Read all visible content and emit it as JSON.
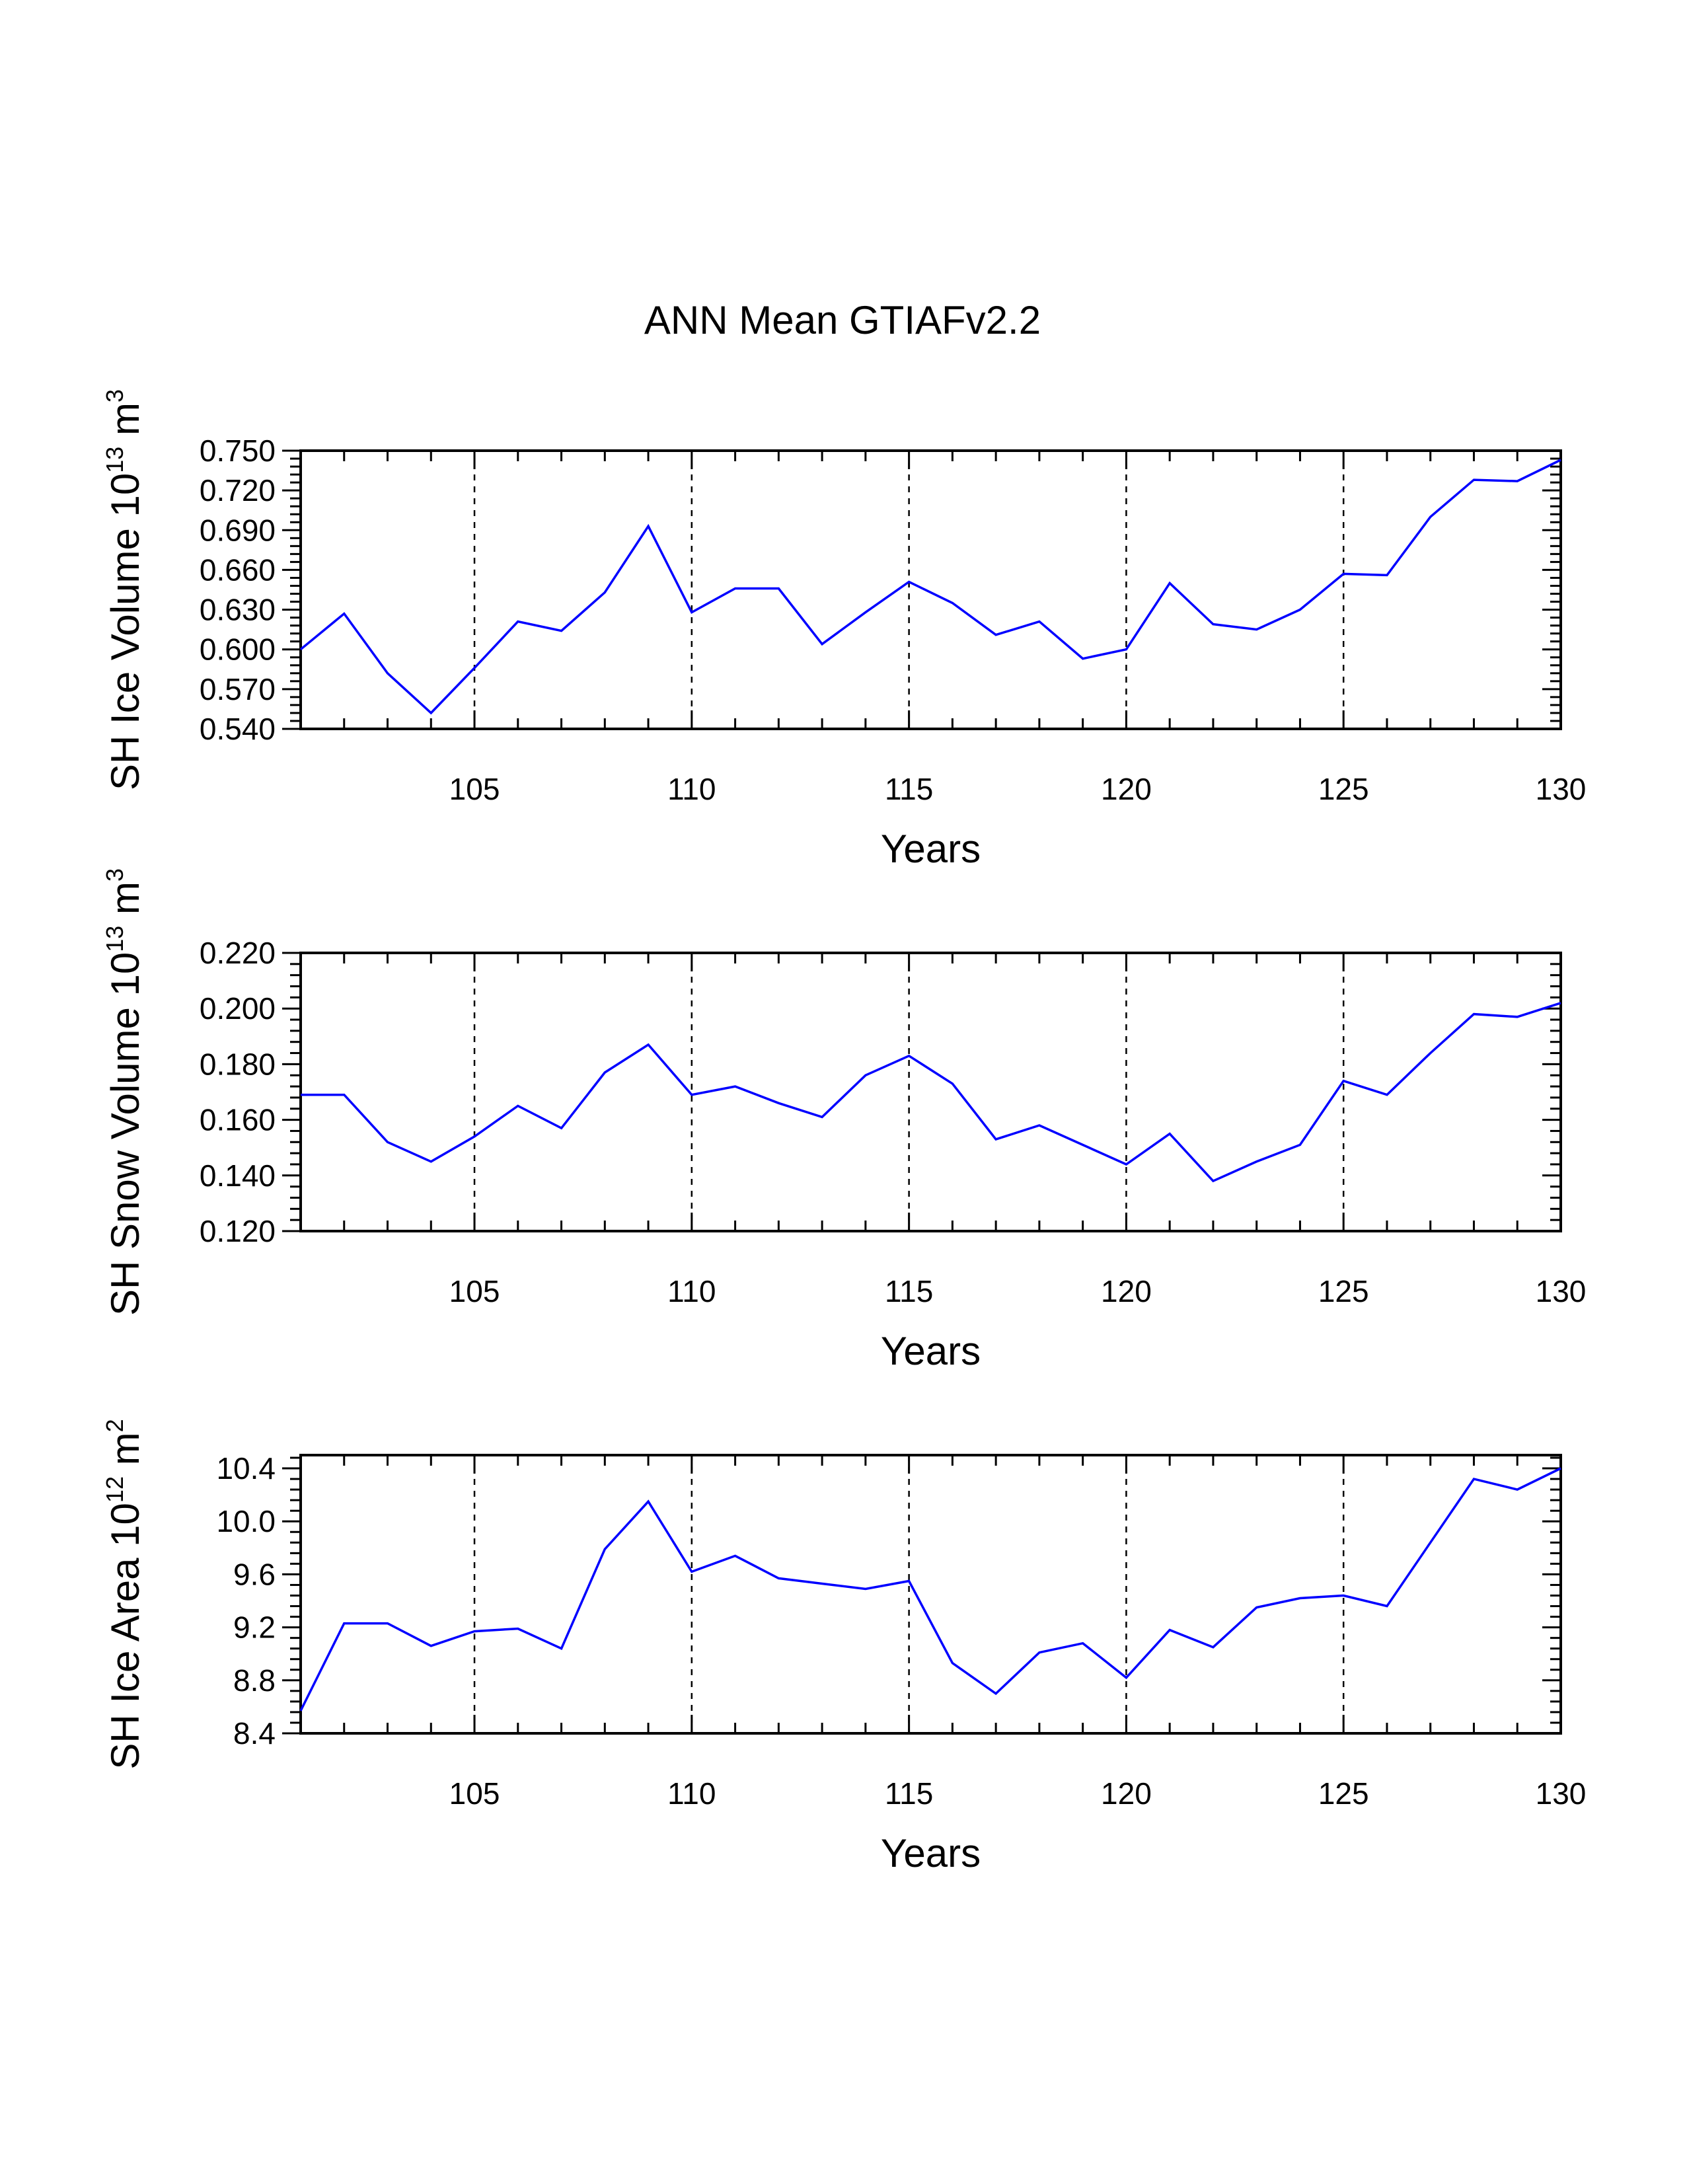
{
  "chart_data": [
    {
      "type": "line",
      "title": "ANN Mean GTIAFv2.2",
      "xlabel": "Years",
      "ylabel": {
        "text": "SH Ice Volume 10",
        "exp": "13",
        "unit": " m",
        "unit_exp": "3"
      },
      "xlim": [
        101,
        130
      ],
      "xticks": [
        "105",
        "110",
        "115",
        "120",
        "125",
        "130"
      ],
      "ylim": [
        0.54,
        0.75
      ],
      "yticks": [
        "0.540",
        "0.570",
        "0.600",
        "0.630",
        "0.660",
        "0.690",
        "0.720",
        "0.750"
      ],
      "grid": "vertical dashed at labeled x ticks",
      "line_color": "#0000ff",
      "x": [
        101,
        102,
        103,
        104,
        105,
        106,
        107,
        108,
        109,
        110,
        111,
        112,
        113,
        114,
        115,
        116,
        117,
        118,
        119,
        120,
        121,
        122,
        123,
        124,
        125,
        126,
        127,
        128,
        129,
        130
      ],
      "y": [
        0.6,
        0.627,
        0.582,
        0.552,
        0.586,
        0.621,
        0.614,
        0.643,
        0.693,
        0.628,
        0.646,
        0.646,
        0.604,
        0.628,
        0.651,
        0.635,
        0.611,
        0.621,
        0.593,
        0.6,
        0.65,
        0.619,
        0.615,
        0.63,
        0.657,
        0.656,
        0.7,
        0.728,
        0.727,
        0.743
      ]
    },
    {
      "type": "line",
      "xlabel": "Years",
      "ylabel": {
        "text": "SH Snow Volume 10",
        "exp": "13",
        "unit": " m",
        "unit_exp": "3"
      },
      "xlim": [
        101,
        130
      ],
      "xticks": [
        "105",
        "110",
        "115",
        "120",
        "125",
        "130"
      ],
      "ylim": [
        0.12,
        0.22
      ],
      "yticks": [
        "0.120",
        "0.140",
        "0.160",
        "0.180",
        "0.200",
        "0.220"
      ],
      "grid": "vertical dashed at labeled x ticks",
      "line_color": "#0000ff",
      "x": [
        101,
        102,
        103,
        104,
        105,
        106,
        107,
        108,
        109,
        110,
        111,
        112,
        113,
        114,
        115,
        116,
        117,
        118,
        119,
        120,
        121,
        122,
        123,
        124,
        125,
        126,
        127,
        128,
        129,
        130
      ],
      "y": [
        0.169,
        0.169,
        0.152,
        0.145,
        0.154,
        0.165,
        0.157,
        0.177,
        0.187,
        0.169,
        0.172,
        0.166,
        0.161,
        0.176,
        0.183,
        0.173,
        0.153,
        0.158,
        0.151,
        0.144,
        0.155,
        0.138,
        0.145,
        0.151,
        0.174,
        0.169,
        0.184,
        0.198,
        0.197,
        0.202
      ]
    },
    {
      "type": "line",
      "xlabel": "Years",
      "ylabel": {
        "text": "SH Ice Area 10",
        "exp": "12",
        "unit": " m",
        "unit_exp": "2"
      },
      "xlim": [
        101,
        130
      ],
      "xticks": [
        "105",
        "110",
        "115",
        "120",
        "125",
        "130"
      ],
      "ylim": [
        8.4,
        10.5
      ],
      "yticks": [
        "8.4",
        "8.8",
        "9.2",
        "9.6",
        "10.0",
        "10.4"
      ],
      "grid": "vertical dashed at labeled x ticks",
      "line_color": "#0000ff",
      "x": [
        101,
        102,
        103,
        104,
        105,
        106,
        107,
        108,
        109,
        110,
        111,
        112,
        113,
        114,
        115,
        116,
        117,
        118,
        119,
        120,
        121,
        122,
        123,
        124,
        125,
        126,
        127,
        128,
        129,
        130
      ],
      "y": [
        8.57,
        9.23,
        9.23,
        9.06,
        9.17,
        9.19,
        9.04,
        9.79,
        10.15,
        9.62,
        9.74,
        9.57,
        9.53,
        9.49,
        9.55,
        8.93,
        8.7,
        9.01,
        9.08,
        8.82,
        9.18,
        9.05,
        9.35,
        9.42,
        9.44,
        9.36,
        9.84,
        10.32,
        10.24,
        10.4
      ]
    }
  ]
}
